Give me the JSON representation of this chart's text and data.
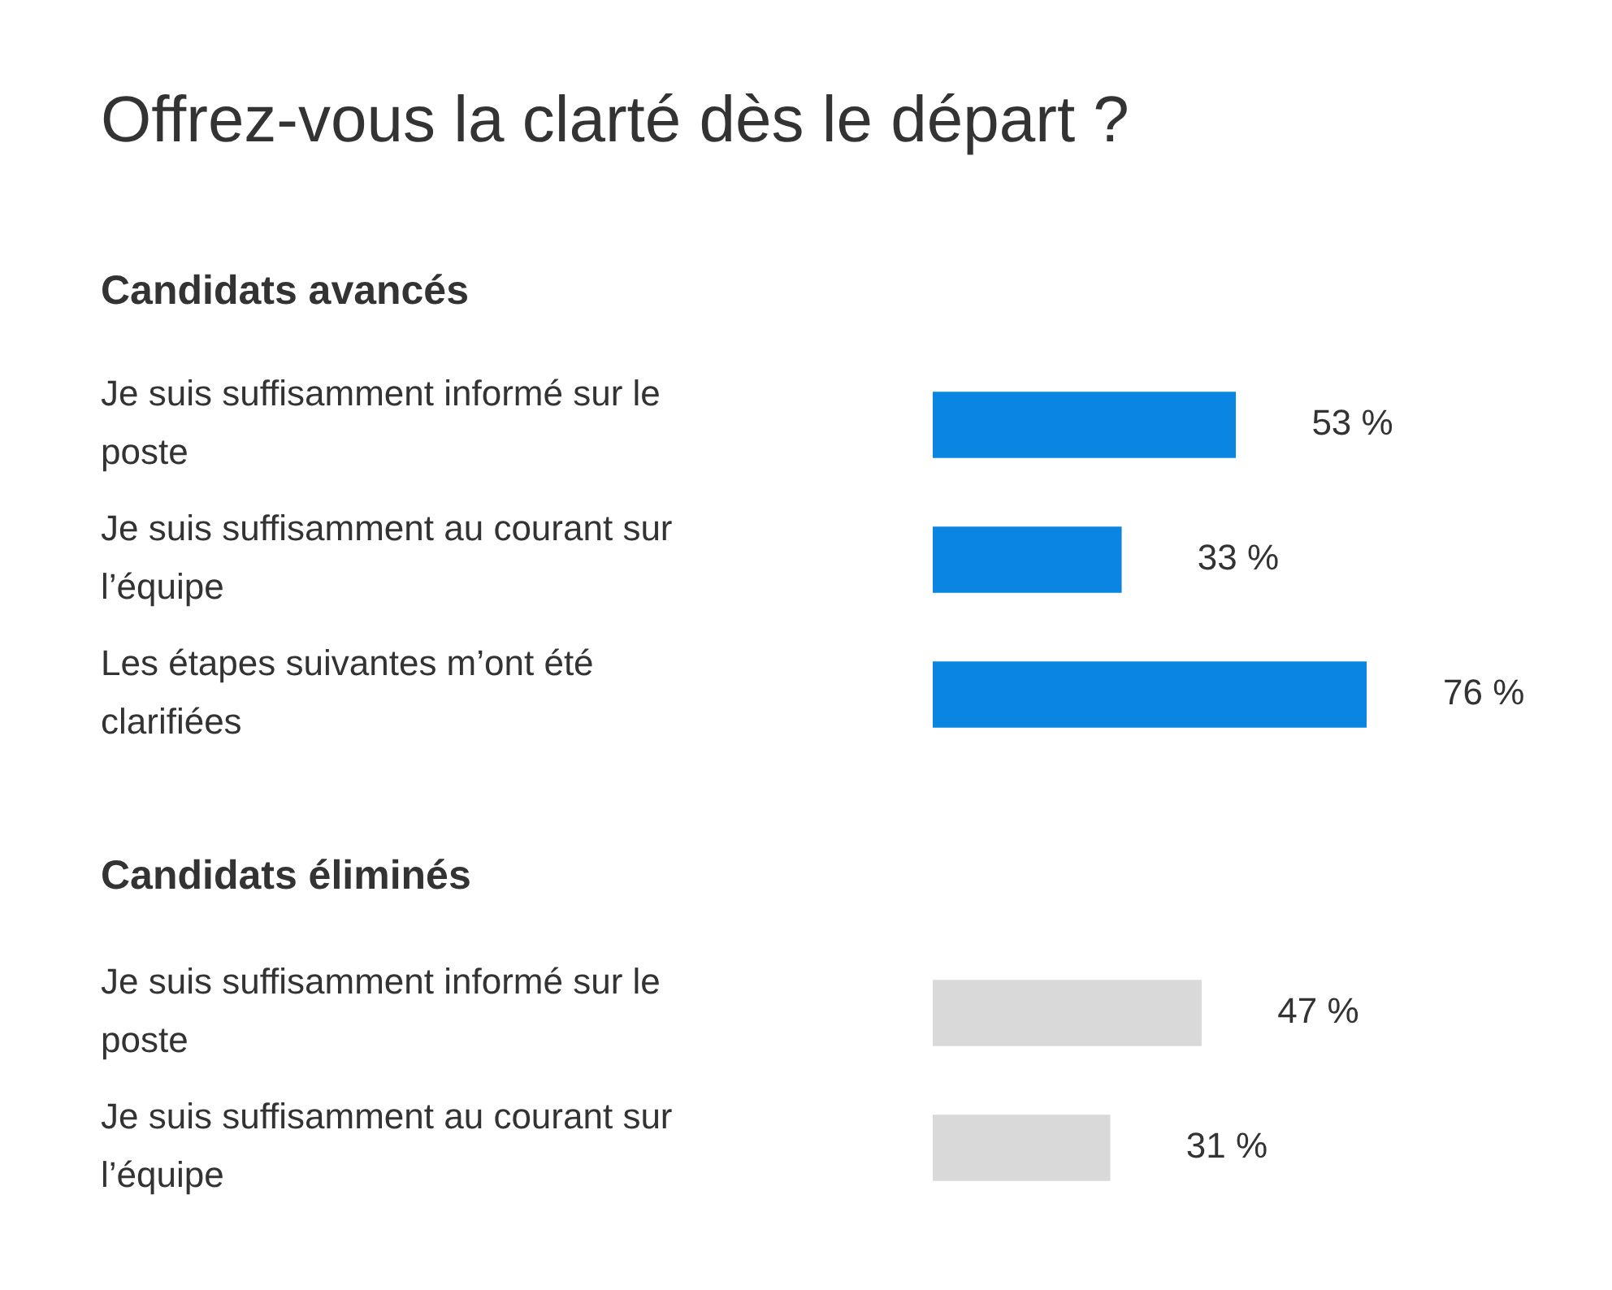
{
  "chart_data": [
    {
      "type": "bar",
      "orientation": "horizontal",
      "title": "Offrez-vous la clarté dès le départ ?",
      "subtitle": "Candidats avancés",
      "categories": [
        "Je suis suffisamment informé sur le poste",
        "Je suis suffisamment au courant sur l’équipe",
        "Les étapes suivantes m’ont été clarifiées"
      ],
      "values": [
        53,
        33,
        76
      ],
      "value_labels": [
        "53 %",
        "33 %",
        "76 %"
      ],
      "color": "#0a86e2",
      "legend": false,
      "tick_labels": "y"
    },
    {
      "type": "bar",
      "orientation": "horizontal",
      "subtitle": "Candidats éliminés",
      "categories": [
        "Je suis suffisamment informé sur le poste",
        "Je suis suffisamment au courant sur l’équipe"
      ],
      "values": [
        47,
        31
      ],
      "value_labels": [
        "47 %",
        "31 %"
      ],
      "color": "#d9d9d9",
      "legend": false,
      "tick_labels": "y"
    }
  ]
}
